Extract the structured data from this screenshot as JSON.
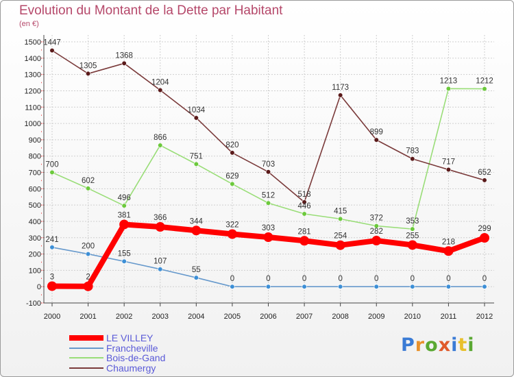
{
  "header": {
    "title": "Evolution du Montant de la Dette par Habitant",
    "subtitle": "(en €)"
  },
  "logo": {
    "text": "Proxiti",
    "letter_colors": [
      "#3a7bd5",
      "#e8912c",
      "#5aa832",
      "#e05a2a",
      "#3a7bd5",
      "#e8c02c",
      "#5aa832"
    ]
  },
  "chart_data": {
    "type": "line",
    "title": "Evolution du Montant de la Dette par Habitant",
    "subtitle": "(en €)",
    "x": [
      "2000",
      "2001",
      "2002",
      "2003",
      "2004",
      "2005",
      "2006",
      "2007",
      "2008",
      "2009",
      "2010",
      "2011",
      "2012"
    ],
    "yticks": [
      -100,
      0,
      100,
      200,
      300,
      400,
      500,
      600,
      700,
      800,
      900,
      1000,
      1100,
      1200,
      1300,
      1400,
      1500
    ],
    "ylim": [
      -100,
      1500
    ],
    "grid": true,
    "legend_position": "bottom-left",
    "series": [
      {
        "name": "LE VILLEY",
        "color": "#ff0000",
        "values": [
          3,
          2,
          381,
          366,
          344,
          322,
          303,
          281,
          254,
          282,
          255,
          218,
          299
        ]
      },
      {
        "name": "Francheville",
        "color": "#6699cc",
        "marker": "#3d8fd6",
        "values": [
          241,
          200,
          155,
          107,
          55,
          0,
          0,
          0,
          0,
          0,
          0,
          0,
          0
        ]
      },
      {
        "name": "Bois-de-Gand",
        "color": "#99dd77",
        "marker": "#6cc93c",
        "values": [
          700,
          602,
          496,
          866,
          751,
          629,
          512,
          446,
          415,
          372,
          353,
          1213,
          1212
        ]
      },
      {
        "name": "Chaumergy",
        "color": "#7a3a3a",
        "marker": "#5a1a1a",
        "values": [
          1447,
          1305,
          1368,
          1204,
          1034,
          820,
          703,
          518,
          1173,
          899,
          783,
          717,
          652
        ]
      }
    ]
  }
}
